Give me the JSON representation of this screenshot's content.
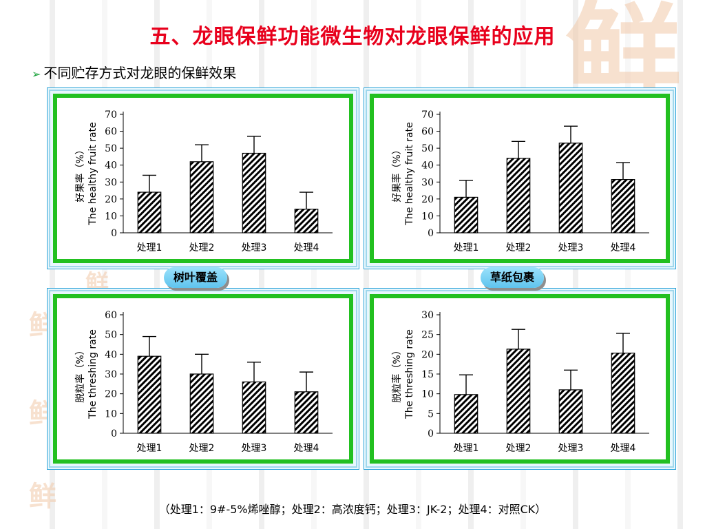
{
  "slide": {
    "title": "五、龙眼保鲜功能微生物对龙眼保鲜的应用",
    "subtitle": "不同贮存方式对龙眼的保鲜效果",
    "footnote": "（处理1：9#-5%烯唑醇；处理2：高浓度钙；处理3：JK-2；处理4：对照CK）",
    "tag_left": "树叶覆盖",
    "tag_right": "草纸包裹",
    "watermark_glyph": "鲜"
  },
  "colors": {
    "title": "#e8001c",
    "frame_green": "#22c020",
    "frame_blue": "#2aa2d8",
    "bar_hatch": "#000000"
  },
  "chart_data": [
    {
      "type": "bar",
      "categories": [
        "处理1",
        "处理2",
        "处理3",
        "处理4"
      ],
      "values": [
        24,
        42,
        47,
        14
      ],
      "errors": [
        10,
        10,
        10,
        10
      ],
      "ylim": [
        0,
        70
      ],
      "yticks": [
        0,
        10,
        20,
        30,
        40,
        50,
        60,
        70
      ],
      "ylabel_cn": "好果率（%）",
      "ylabel_en": "The healthy fruit rate",
      "xlabel": "",
      "title": ""
    },
    {
      "type": "bar",
      "categories": [
        "处理1",
        "处理2",
        "处理3",
        "处理4"
      ],
      "values": [
        21,
        44,
        53,
        31.5
      ],
      "errors": [
        10,
        10,
        10,
        10
      ],
      "ylim": [
        0,
        70
      ],
      "yticks": [
        0,
        10,
        20,
        30,
        40,
        50,
        60,
        70
      ],
      "ylabel_cn": "好果率（%）",
      "ylabel_en": "The healthy fruit rate",
      "xlabel": "",
      "title": ""
    },
    {
      "type": "bar",
      "categories": [
        "处理1",
        "处理2",
        "处理3",
        "处理4"
      ],
      "values": [
        39,
        30,
        26,
        21
      ],
      "errors": [
        10,
        10,
        10,
        10
      ],
      "ylim": [
        0,
        60
      ],
      "yticks": [
        0,
        10,
        20,
        30,
        40,
        50,
        60
      ],
      "ylabel_cn": "脱粒率（%）",
      "ylabel_en": "The threshing rate",
      "xlabel": "",
      "title": ""
    },
    {
      "type": "bar",
      "categories": [
        "处理1",
        "处理2",
        "处理3",
        "处理4"
      ],
      "values": [
        9.8,
        21.3,
        11,
        20.3
      ],
      "errors": [
        5,
        5,
        5,
        5
      ],
      "ylim": [
        0,
        30
      ],
      "yticks": [
        0,
        5,
        10,
        15,
        20,
        25,
        30
      ],
      "ylabel_cn": "脱粒率（%）",
      "ylabel_en": "The threshing rate",
      "xlabel": "",
      "title": ""
    }
  ]
}
